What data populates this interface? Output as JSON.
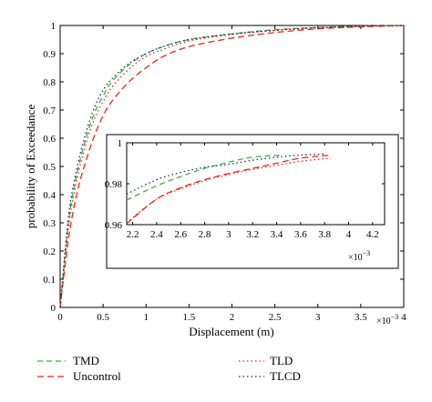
{
  "chart_data": [
    {
      "type": "line",
      "xlabel": "Displacement (m)",
      "ylabel": "probability of Exceedance",
      "x_exponent": "×10",
      "x_exponent_power": "−3",
      "xlim": [
        0,
        4
      ],
      "ylim": [
        0,
        1
      ],
      "xticks": [
        "0",
        "0.5",
        "1",
        "1.5",
        "2",
        "2.5",
        "3",
        "3.5",
        "4"
      ],
      "yticks": [
        "0",
        "0.1",
        "0.2",
        "0.3",
        "0.4",
        "0.5",
        "0.6",
        "0.7",
        "0.8",
        "0.9",
        "1"
      ],
      "legend_position": "below",
      "series": [
        {
          "name": "TMD",
          "color": "#3cb043",
          "dash": "6,4",
          "x": [
            0,
            0.1,
            0.2,
            0.3,
            0.4,
            0.5,
            0.6,
            0.8,
            1.0,
            1.2,
            1.5,
            2.0,
            2.5,
            3.0,
            3.5,
            4.0
          ],
          "y": [
            0,
            0.31,
            0.48,
            0.6,
            0.69,
            0.75,
            0.8,
            0.86,
            0.9,
            0.925,
            0.95,
            0.97,
            0.985,
            0.993,
            0.998,
            1.0
          ]
        },
        {
          "name": "Uncontrol",
          "color": "#e8291c",
          "dash": "7,4",
          "x": [
            0,
            0.1,
            0.2,
            0.3,
            0.4,
            0.5,
            0.6,
            0.8,
            1.0,
            1.2,
            1.5,
            2.0,
            2.5,
            3.0,
            3.5,
            4.0
          ],
          "y": [
            0,
            0.25,
            0.41,
            0.52,
            0.61,
            0.68,
            0.73,
            0.8,
            0.85,
            0.89,
            0.925,
            0.955,
            0.975,
            0.988,
            0.995,
            1.0
          ]
        },
        {
          "name": "TLD",
          "color": "#e8291c",
          "dash": "1.5,3",
          "x": [
            0,
            0.1,
            0.2,
            0.3,
            0.4,
            0.5,
            0.6,
            0.8,
            1.0,
            1.2,
            1.5,
            2.0,
            2.5,
            3.0,
            3.5,
            4.0
          ],
          "y": [
            0,
            0.29,
            0.46,
            0.58,
            0.67,
            0.73,
            0.78,
            0.845,
            0.89,
            0.915,
            0.945,
            0.968,
            0.982,
            0.992,
            0.997,
            1.0
          ]
        },
        {
          "name": "TLCD",
          "color": "#1f2a6b",
          "dash": "1.5,3",
          "x": [
            0,
            0.1,
            0.2,
            0.3,
            0.4,
            0.5,
            0.6,
            0.8,
            1.0,
            1.2,
            1.5,
            2.0,
            2.5,
            3.0,
            3.5,
            4.0
          ],
          "y": [
            0,
            0.33,
            0.5,
            0.62,
            0.71,
            0.77,
            0.81,
            0.865,
            0.9,
            0.925,
            0.95,
            0.97,
            0.983,
            0.992,
            0.997,
            1.0
          ]
        }
      ]
    },
    {
      "type": "line",
      "role": "inset",
      "x_exponent": "×10",
      "x_exponent_power": "−3",
      "xlim": [
        2.15,
        4.3
      ],
      "ylim": [
        0.96,
        1.0
      ],
      "xticks": [
        "2.2",
        "2.4",
        "2.6",
        "2.8",
        "3",
        "3.2",
        "3.4",
        "3.6",
        "3.8",
        "4",
        "4.2"
      ],
      "yticks": [
        "0.96",
        "0.98",
        "1"
      ],
      "series": [
        {
          "name": "TMD",
          "color": "#3cb043",
          "dash": "6,4",
          "x": [
            2.15,
            2.4,
            2.6,
            2.8,
            3.0,
            3.2,
            3.45
          ],
          "y": [
            0.972,
            0.979,
            0.9835,
            0.9875,
            0.9905,
            0.993,
            0.994
          ]
        },
        {
          "name": "Uncontrol",
          "color": "#e8291c",
          "dash": "7,4",
          "x": [
            2.15,
            2.4,
            2.6,
            2.8,
            3.0,
            3.2,
            3.4,
            3.6,
            3.85
          ],
          "y": [
            0.9605,
            0.9725,
            0.978,
            0.982,
            0.985,
            0.9875,
            0.99,
            0.9925,
            0.994
          ]
        },
        {
          "name": "TLD",
          "color": "#e8291c",
          "dash": "1.5,3",
          "x": [
            2.15,
            2.4,
            2.6,
            2.8,
            3.0,
            3.2,
            3.4,
            3.6,
            3.85
          ],
          "y": [
            0.961,
            0.9725,
            0.9775,
            0.9815,
            0.9845,
            0.987,
            0.989,
            0.991,
            0.9925
          ]
        },
        {
          "name": "TLCD",
          "color": "#1f2a6b",
          "dash": "1.5,3",
          "x": [
            2.15,
            2.4,
            2.6,
            2.8,
            3.0,
            3.2,
            3.4,
            3.6,
            3.8
          ],
          "y": [
            0.975,
            0.982,
            0.9855,
            0.988,
            0.9895,
            0.9915,
            0.993,
            0.994,
            0.9945
          ]
        }
      ]
    }
  ]
}
